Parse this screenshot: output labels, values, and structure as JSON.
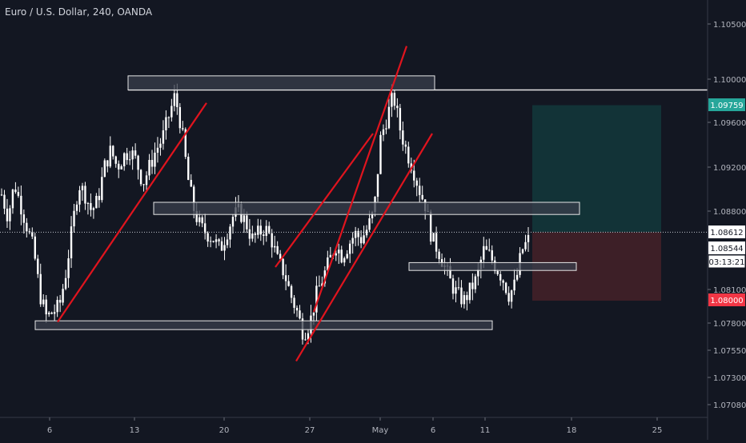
{
  "header": {
    "symbol_title": "Euro / U.S. Dollar, 240, OANDA"
  },
  "colors": {
    "background": "#131722",
    "candle": "#ffffff",
    "trendline": "#e0141e",
    "zone_fill": "#3a3f4c",
    "zone_border": "#e6e6e6",
    "target_fill": "#123337",
    "stop_fill": "#3d1f27",
    "target_badge": "#26a69a",
    "stop_badge": "#f23645"
  },
  "chart_data": {
    "type": "candlestick",
    "title": "Euro / U.S. Dollar, 240, OANDA",
    "xlabel": "",
    "ylabel": "",
    "x_tick_labels": [
      "6",
      "13",
      "20",
      "27",
      "May",
      "6",
      "11",
      "18",
      "25"
    ],
    "y_tick_labels": [
      "1.10500",
      "1.10000",
      "1.09600",
      "1.09200",
      "1.08800",
      "1.08100",
      "1.07800",
      "1.07550",
      "1.07300",
      "1.07080"
    ],
    "ylim": [
      1.07,
      1.1065
    ],
    "grid": false,
    "series": [
      {
        "close_path": [
          1.0895,
          1.0875,
          1.0905,
          1.0885,
          1.0865,
          1.0845,
          1.0805,
          1.0785,
          1.079,
          1.0795,
          1.0825,
          1.0865,
          1.0905,
          1.0895,
          1.088,
          1.089,
          1.092,
          1.0935,
          1.092,
          1.093,
          1.0935,
          1.0925,
          1.0905,
          1.092,
          1.0935,
          1.0945,
          1.0965,
          1.0985,
          1.0955,
          1.091,
          1.088,
          1.0865,
          1.086,
          1.0855,
          1.0845,
          1.086,
          1.0875,
          1.088,
          1.087,
          1.0855,
          1.086,
          1.0865,
          1.0855,
          1.0835,
          1.0825,
          1.0805,
          1.079,
          1.077,
          1.078,
          1.0805,
          1.082,
          1.0835,
          1.085,
          1.084,
          1.085,
          1.086,
          1.0855,
          1.0865,
          1.088,
          1.0945,
          1.0965,
          1.0985,
          1.0955,
          1.0935,
          1.092,
          1.09,
          1.0885,
          1.0855,
          1.0845,
          1.083,
          1.0815,
          1.0805,
          1.08,
          1.081,
          1.082,
          1.0845,
          1.084,
          1.083,
          1.082,
          1.0805,
          1.0815,
          1.0845,
          1.0854
        ]
      }
    ],
    "price_badges": [
      {
        "label": "1.09759",
        "value": 1.09759,
        "role": "target"
      },
      {
        "label": "1.08612",
        "value": 1.08612,
        "role": "entry"
      },
      {
        "label": "1.08544",
        "value": 1.08544,
        "role": "last"
      },
      {
        "label": "03:13:21",
        "value": 1.0844,
        "role": "countdown"
      },
      {
        "label": "1.08000",
        "value": 1.08,
        "role": "stop"
      }
    ],
    "horizontal_lines": [
      {
        "value": 1.099
      }
    ],
    "dotted_line": {
      "value": 1.08612
    },
    "position": {
      "entry": 1.08612,
      "target": 1.09759,
      "stop": 1.08
    }
  }
}
